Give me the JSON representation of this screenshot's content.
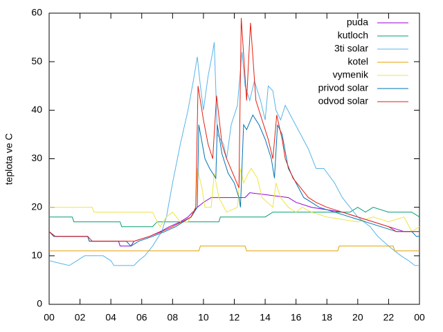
{
  "chart_data": {
    "type": "line",
    "ylabel": "teplota ve C",
    "xlim": [
      0,
      24
    ],
    "ylim": [
      0,
      60
    ],
    "xticks": [
      {
        "value": 0,
        "label": "00"
      },
      {
        "value": 2,
        "label": "02"
      },
      {
        "value": 4,
        "label": "04"
      },
      {
        "value": 6,
        "label": "06"
      },
      {
        "value": 8,
        "label": "08"
      },
      10,
      12,
      14,
      16,
      18,
      20,
      22,
      {
        "value": 24,
        "label": "00"
      }
    ],
    "yticks": [
      0,
      10,
      20,
      30,
      40,
      50,
      60
    ],
    "legend": "top-right",
    "series": [
      {
        "name": "puda",
        "color": "#9400d3",
        "x": [
          0,
          0.3,
          2.5,
          2.6,
          4.5,
          4.6,
          5.3,
          5.5,
          6.5,
          7.2,
          7.8,
          8.5,
          9,
          9.6,
          10,
          10.5,
          12.7,
          13,
          15.5,
          16,
          17,
          19,
          20,
          21,
          22,
          23,
          24
        ],
        "values": [
          15,
          14,
          14,
          13,
          13,
          12,
          12,
          13,
          14,
          15,
          16,
          17,
          18,
          20,
          21,
          22,
          22,
          23,
          22,
          21,
          20,
          19,
          18,
          17,
          16,
          15,
          15
        ]
      },
      {
        "name": "kutloch",
        "color": "#009e73",
        "x": [
          0,
          1.5,
          1.6,
          4.6,
          4.7,
          6.7,
          7,
          11,
          11.1,
          14,
          14.5,
          19.5,
          20,
          20.5,
          21,
          22,
          23.5,
          24
        ],
        "values": [
          18,
          18,
          17,
          17,
          16,
          16,
          17,
          17,
          18,
          18,
          19,
          19,
          20,
          19,
          20,
          19,
          19,
          18
        ]
      },
      {
        "name": "3ti solar",
        "color": "#56b4e9",
        "x": [
          0,
          1.3,
          1.8,
          2.3,
          3.5,
          4,
          4.2,
          5.5,
          5.8,
          6.2,
          6.7,
          7.3,
          7.6,
          8,
          8.5,
          9,
          9.4,
          9.6,
          9.8,
          10,
          10.3,
          10.6,
          10.7,
          10.9,
          11.3,
          11.5,
          11.8,
          12.2,
          12.5,
          12.7,
          13,
          13.3,
          13.7,
          14,
          14.2,
          14.5,
          14.7,
          15,
          15.3,
          15.8,
          16.3,
          16.8,
          17.3,
          17.8,
          18.5,
          19,
          19.5,
          20,
          20.8,
          21.3,
          22,
          22.8,
          23.3,
          23.7,
          24
        ],
        "values": [
          9,
          8,
          9,
          10,
          10,
          9,
          8,
          8,
          9,
          10,
          12,
          15,
          18,
          25,
          33,
          40,
          47,
          51,
          45,
          40,
          47,
          52,
          54,
          35,
          33,
          30,
          37,
          41,
          52,
          45,
          42,
          46,
          42,
          38,
          45,
          44,
          40,
          38,
          41,
          38,
          35,
          32,
          28,
          28,
          25,
          22,
          20,
          18,
          16,
          14,
          12,
          10,
          9,
          8,
          8
        ]
      },
      {
        "name": "kotel",
        "color": "#e69f00",
        "x": [
          0,
          9.7,
          9.8,
          12.7,
          12.8,
          18.7,
          18.8,
          22.3,
          22.4,
          24
        ],
        "values": [
          11,
          11,
          12,
          12,
          11,
          11,
          12,
          12,
          11,
          11
        ]
      },
      {
        "name": "vymenik",
        "color": "#f0e442",
        "x": [
          0,
          2.8,
          2.9,
          6.7,
          7,
          7.2,
          7.6,
          8,
          8.5,
          9,
          9.5,
          9.6,
          9.9,
          10.1,
          10.5,
          10.7,
          11,
          11.5,
          12.2,
          12.4,
          12.6,
          12.9,
          13.1,
          13.5,
          13.8,
          14.5,
          14.7,
          15,
          15.5,
          16,
          16.4,
          17,
          18,
          20,
          21,
          22,
          23,
          23.5,
          24
        ],
        "values": [
          20,
          20,
          19,
          19,
          17,
          16,
          18,
          19,
          17,
          17,
          20,
          28,
          24,
          20,
          20,
          27,
          22,
          19,
          20,
          28,
          25,
          27,
          28,
          26,
          22,
          20,
          25,
          22,
          20,
          19,
          20,
          19,
          18,
          17,
          18,
          17,
          18,
          15,
          16
        ]
      },
      {
        "name": "privod solar",
        "color": "#0072b2",
        "x": [
          0,
          0.3,
          2.5,
          2.6,
          5,
          5.3,
          5.8,
          6.7,
          7.5,
          8.2,
          8.7,
          9.2,
          9.6,
          9.7,
          10.1,
          10.4,
          10.8,
          10.9,
          11.2,
          11.6,
          12,
          12.3,
          12.4,
          12.6,
          12.8,
          13.2,
          13.6,
          14,
          14.4,
          14.6,
          14.8,
          15.1,
          15.5,
          16,
          16.5,
          17,
          17.5,
          18.5,
          19.5,
          20.5,
          21.5,
          22.5,
          23.5,
          23.8,
          24
        ],
        "values": [
          15,
          14,
          14,
          13,
          13,
          12,
          13,
          14,
          15,
          16,
          17,
          18,
          20,
          37,
          30,
          28,
          26,
          37,
          31,
          27,
          25,
          22,
          20,
          37,
          36,
          39,
          37,
          34,
          30,
          26,
          37,
          35,
          28,
          25,
          22,
          21,
          20,
          19,
          18,
          17,
          16,
          15,
          15,
          14,
          14
        ]
      },
      {
        "name": "odvod solar",
        "color": "#e51e10",
        "x": [
          0,
          0.4,
          2.5,
          2.8,
          5.3,
          5.5,
          6.5,
          7.3,
          8,
          8.6,
          9.2,
          9.5,
          9.65,
          10,
          10.3,
          10.6,
          10.85,
          11.2,
          11.5,
          11.9,
          12.3,
          12.45,
          12.8,
          13.05,
          13.4,
          13.8,
          14.2,
          14.5,
          14.75,
          15.1,
          15.3,
          15.8,
          16.3,
          16.8,
          17.3,
          18,
          19,
          20,
          21,
          22,
          22.5,
          24
        ],
        "values": [
          15,
          14,
          14,
          13,
          13,
          13,
          14,
          15,
          16,
          17,
          18,
          20,
          45,
          38,
          33,
          30,
          43,
          33,
          30,
          27,
          24,
          59,
          42,
          58,
          42,
          38,
          34,
          30,
          39,
          34,
          30,
          26,
          24,
          22,
          21,
          20,
          19,
          18,
          17,
          16,
          15,
          15
        ]
      }
    ]
  }
}
